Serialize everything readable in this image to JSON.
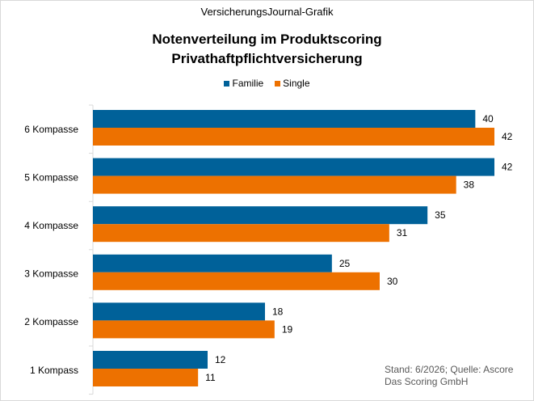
{
  "source": "VersicherungsJournal-Grafik",
  "title_line1": "Notenverteilung im Produktscoring",
  "title_line2": "Privathaftpflichtversicherung",
  "note_line1": "Stand: 6/2026; Quelle: Ascore",
  "note_line2": "Das Scoring GmbH",
  "chart_data": {
    "type": "bar",
    "orientation": "horizontal",
    "categories": [
      "6 Kompasse",
      "5 Kompasse",
      "4 Kompasse",
      "3 Kompasse",
      "2 Kompasse",
      "1 Kompass"
    ],
    "series": [
      {
        "name": "Familie",
        "color": "#006199",
        "values": [
          40,
          42,
          35,
          25,
          18,
          12
        ]
      },
      {
        "name": "Single",
        "color": "#ED7100",
        "values": [
          42,
          38,
          31,
          30,
          19,
          11
        ]
      }
    ],
    "xlim": [
      0,
      42
    ],
    "legend_position": "top",
    "grid": false
  }
}
